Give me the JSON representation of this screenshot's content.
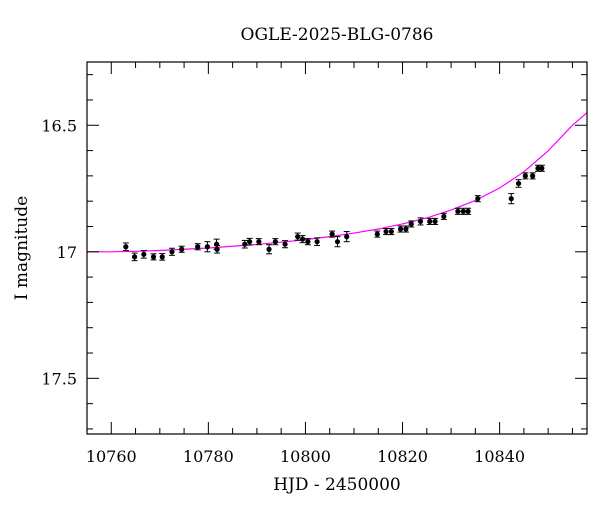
{
  "chart_data": {
    "type": "scatter",
    "title": "OGLE-2025-BLG-0786",
    "xlabel": "HJD - 2450000",
    "ylabel": "I magnitude",
    "xlim": [
      10755,
      10858
    ],
    "ylim": [
      17.72,
      16.25
    ],
    "y_inverted": true,
    "x_ticks": [
      10760,
      10780,
      10800,
      10820,
      10840
    ],
    "x_tick_labels": [
      "10760",
      "10780",
      "10800",
      "10820",
      "10840"
    ],
    "y_ticks": [
      16.5,
      17,
      17.5
    ],
    "y_tick_labels": [
      "16.5",
      "17",
      "17.5"
    ],
    "grid": false,
    "marker_color": "#000000",
    "model_color": "#ff00ff",
    "series": [
      {
        "type": "scatter",
        "x": [
          10763.0,
          10764.8,
          10766.7,
          10768.7,
          10770.5,
          10772.5,
          10774.5,
          10777.8,
          10779.8,
          10781.7,
          10781.8,
          10787.5,
          10788.5,
          10790.4,
          10792.5,
          10793.8,
          10795.8,
          10798.4,
          10799.4,
          10800.5,
          10802.4,
          10805.5,
          10806.6,
          10808.5,
          10814.8,
          10816.6,
          10817.7,
          10819.6,
          10820.7,
          10821.8,
          10823.7,
          10825.6,
          10826.7,
          10828.5,
          10831.4,
          10832.5,
          10833.5,
          10835.5,
          10842.4,
          10843.9,
          10845.3,
          10846.8,
          10847.9,
          10848.7
        ],
        "y": [
          16.98,
          17.02,
          17.01,
          17.02,
          17.02,
          17.0,
          16.99,
          16.98,
          16.98,
          16.97,
          16.99,
          16.97,
          16.96,
          16.96,
          16.99,
          16.96,
          16.97,
          16.94,
          16.95,
          16.96,
          16.96,
          16.93,
          16.96,
          16.94,
          16.93,
          16.92,
          16.92,
          16.91,
          16.91,
          16.89,
          16.88,
          16.88,
          16.88,
          16.86,
          16.84,
          16.84,
          16.84,
          16.79,
          16.79,
          16.73,
          16.7,
          16.7,
          16.67,
          16.67
        ],
        "yerr": [
          0.015,
          0.015,
          0.015,
          0.012,
          0.013,
          0.014,
          0.012,
          0.012,
          0.02,
          0.02,
          0.015,
          0.015,
          0.013,
          0.012,
          0.018,
          0.012,
          0.014,
          0.014,
          0.014,
          0.012,
          0.015,
          0.012,
          0.02,
          0.02,
          0.012,
          0.012,
          0.012,
          0.012,
          0.012,
          0.012,
          0.014,
          0.012,
          0.012,
          0.012,
          0.012,
          0.012,
          0.012,
          0.012,
          0.02,
          0.015,
          0.012,
          0.012,
          0.012,
          0.012
        ]
      },
      {
        "type": "line",
        "x": [
          10755,
          10760,
          10765,
          10770,
          10775,
          10780,
          10785,
          10790,
          10795,
          10800,
          10805,
          10810,
          10815,
          10820,
          10825,
          10830,
          10835,
          10840,
          10845,
          10850,
          10855,
          10858
        ],
        "y": [
          17.0,
          17.0,
          16.998,
          16.995,
          16.99,
          16.985,
          16.978,
          16.971,
          16.962,
          16.952,
          16.94,
          16.926,
          16.91,
          16.89,
          16.866,
          16.835,
          16.797,
          16.748,
          16.684,
          16.601,
          16.5,
          16.45
        ]
      }
    ]
  }
}
